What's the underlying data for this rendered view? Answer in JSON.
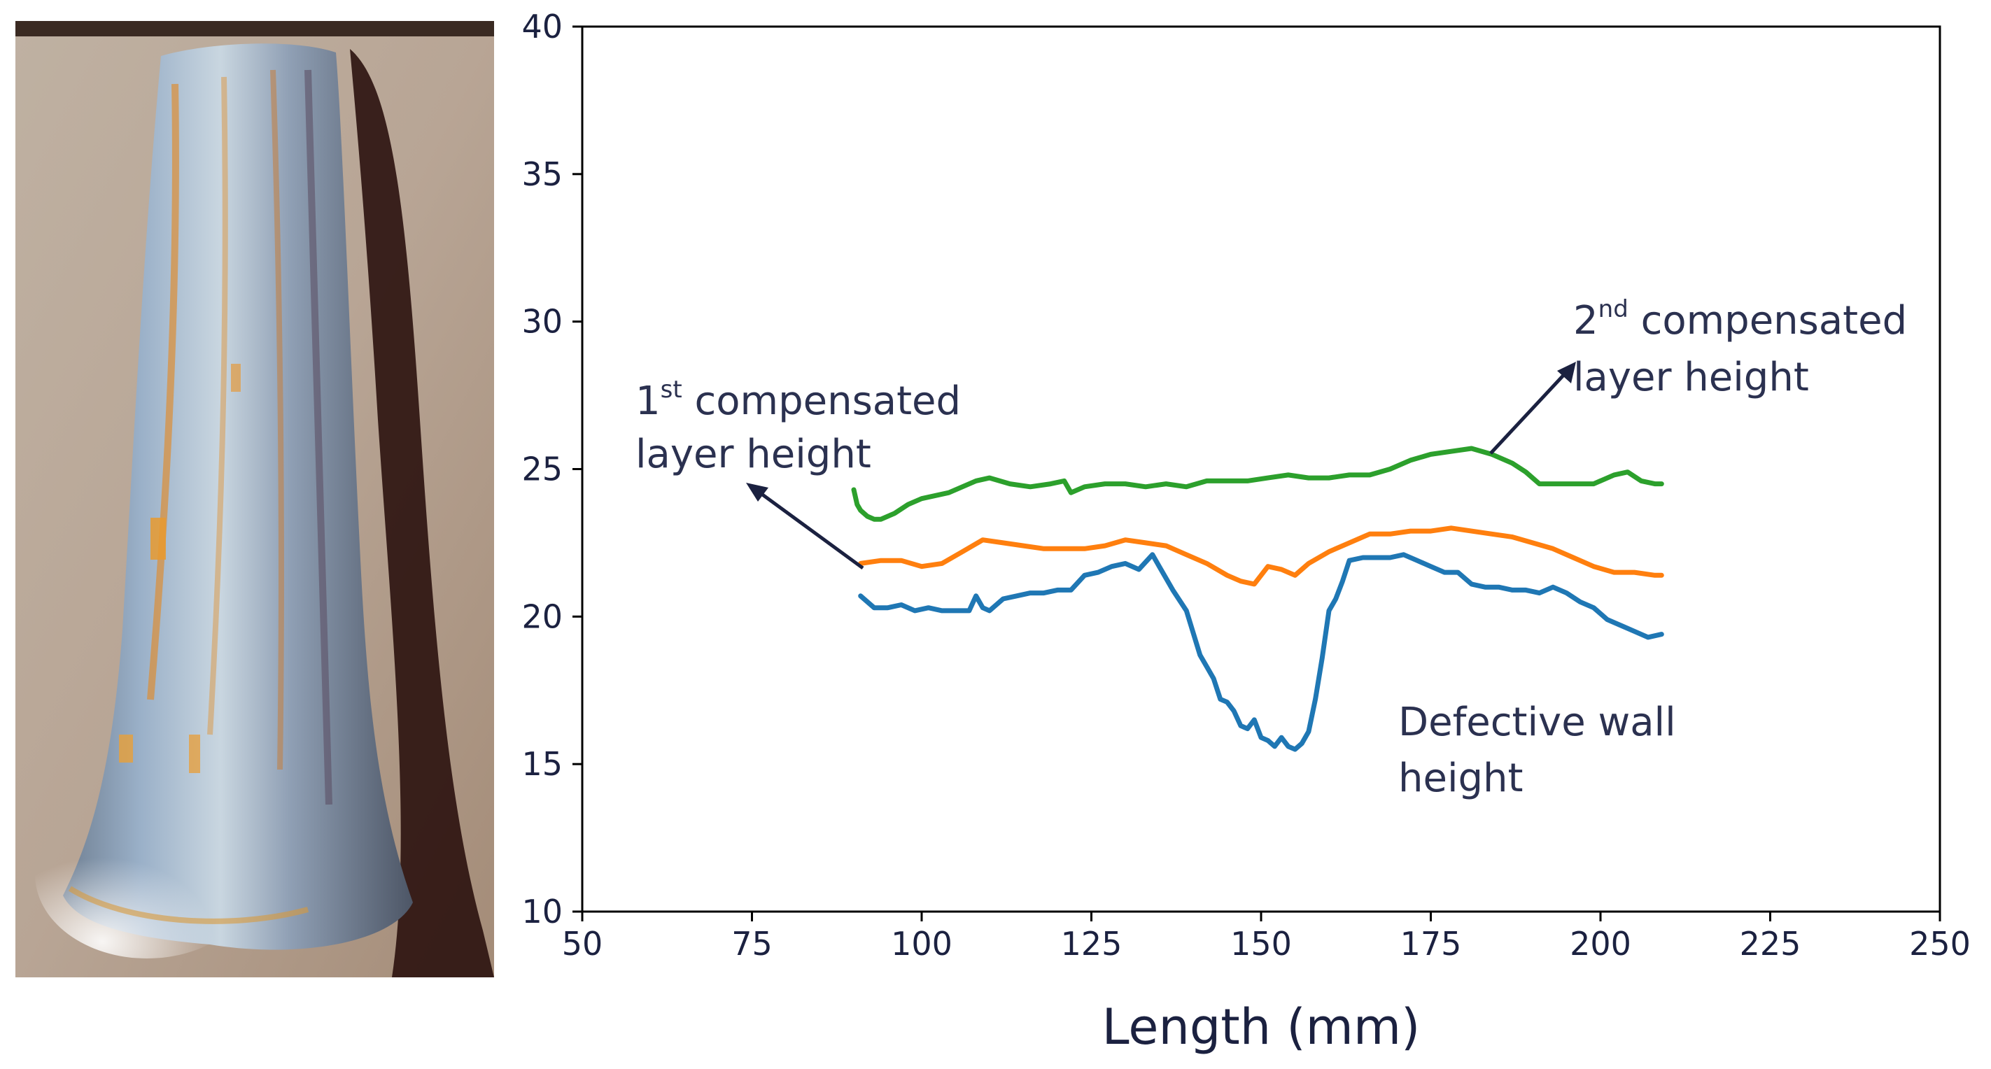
{
  "chart_data": {
    "type": "line",
    "xlabel": "Length (mm)",
    "ylabel": "",
    "xlim": [
      50,
      250
    ],
    "ylim": [
      10,
      40
    ],
    "xticks": [
      50,
      75,
      100,
      125,
      150,
      175,
      200,
      225,
      250
    ],
    "yticks": [
      10,
      15,
      20,
      25,
      30,
      35,
      40
    ],
    "grid": false,
    "legend": "none",
    "series": [
      {
        "name": "Defective wall height",
        "color": "#1f77b4",
        "x": [
          91,
          93,
          95,
          97,
          99,
          101,
          103,
          105,
          107,
          108,
          109,
          110,
          112,
          114,
          116,
          118,
          120,
          122,
          124,
          126,
          128,
          130,
          132,
          134,
          135,
          137,
          139,
          141,
          142,
          143,
          144,
          145,
          146,
          147,
          148,
          149,
          150,
          151,
          152,
          153,
          154,
          155,
          156,
          157,
          158,
          159,
          160,
          161,
          162,
          163,
          165,
          167,
          169,
          171,
          173,
          175,
          177,
          179,
          181,
          183,
          185,
          187,
          189,
          191,
          193,
          195,
          197,
          199,
          201,
          203,
          205,
          207,
          209
        ],
        "y": [
          20.7,
          20.3,
          20.3,
          20.4,
          20.2,
          20.3,
          20.2,
          20.2,
          20.2,
          20.7,
          20.3,
          20.2,
          20.6,
          20.7,
          20.8,
          20.8,
          20.9,
          20.9,
          21.4,
          21.5,
          21.7,
          21.8,
          21.6,
          22.1,
          21.7,
          20.9,
          20.2,
          18.7,
          18.3,
          17.9,
          17.2,
          17.1,
          16.8,
          16.3,
          16.2,
          16.5,
          15.9,
          15.8,
          15.6,
          15.9,
          15.6,
          15.5,
          15.7,
          16.1,
          17.2,
          18.6,
          20.2,
          20.6,
          21.2,
          21.9,
          22.0,
          22.0,
          22.0,
          22.1,
          21.9,
          21.7,
          21.5,
          21.5,
          21.1,
          21.0,
          21.0,
          20.9,
          20.9,
          20.8,
          21.0,
          20.8,
          20.5,
          20.3,
          19.9,
          19.7,
          19.5,
          19.3,
          19.4
        ]
      },
      {
        "name": "1st compensated layer height",
        "color": "#ff7f0e",
        "x": [
          91,
          94,
          97,
          100,
          103,
          106,
          109,
          112,
          115,
          118,
          121,
          124,
          127,
          130,
          133,
          136,
          139,
          142,
          145,
          147,
          149,
          151,
          153,
          155,
          157,
          160,
          163,
          166,
          169,
          172,
          175,
          178,
          181,
          184,
          187,
          190,
          193,
          196,
          199,
          202,
          205,
          208,
          209
        ],
        "y": [
          21.8,
          21.9,
          21.9,
          21.7,
          21.8,
          22.2,
          22.6,
          22.5,
          22.4,
          22.3,
          22.3,
          22.3,
          22.4,
          22.6,
          22.5,
          22.4,
          22.1,
          21.8,
          21.4,
          21.2,
          21.1,
          21.7,
          21.6,
          21.4,
          21.8,
          22.2,
          22.5,
          22.8,
          22.8,
          22.9,
          22.9,
          23.0,
          22.9,
          22.8,
          22.7,
          22.5,
          22.3,
          22.0,
          21.7,
          21.5,
          21.5,
          21.4,
          21.4
        ]
      },
      {
        "name": "2nd compensated layer height",
        "color": "#2ca02c",
        "x": [
          90,
          90.5,
          91,
          92,
          93,
          94,
          96,
          98,
          100,
          102,
          104,
          106,
          108,
          110,
          113,
          116,
          119,
          121,
          122,
          124,
          127,
          130,
          133,
          136,
          139,
          142,
          145,
          148,
          151,
          154,
          157,
          160,
          163,
          166,
          169,
          172,
          175,
          178,
          181,
          184,
          187,
          189,
          191,
          193,
          196,
          199,
          202,
          204,
          206,
          208,
          209
        ],
        "y": [
          24.3,
          23.8,
          23.6,
          23.4,
          23.3,
          23.3,
          23.5,
          23.8,
          24.0,
          24.1,
          24.2,
          24.4,
          24.6,
          24.7,
          24.5,
          24.4,
          24.5,
          24.6,
          24.2,
          24.4,
          24.5,
          24.5,
          24.4,
          24.5,
          24.4,
          24.6,
          24.6,
          24.6,
          24.7,
          24.8,
          24.7,
          24.7,
          24.8,
          24.8,
          25.0,
          25.3,
          25.5,
          25.6,
          25.7,
          25.5,
          25.2,
          24.9,
          24.5,
          24.5,
          24.5,
          24.5,
          24.8,
          24.9,
          24.6,
          24.5,
          24.5
        ]
      }
    ],
    "annotations": [
      {
        "base": "1",
        "sup": "st",
        "rest": " compensated",
        "line2": "layer height"
      },
      {
        "base": "2",
        "sup": "nd",
        "rest": " compensated",
        "line2": "layer height"
      },
      {
        "line1": "Defective wall",
        "line2": "height"
      }
    ]
  }
}
